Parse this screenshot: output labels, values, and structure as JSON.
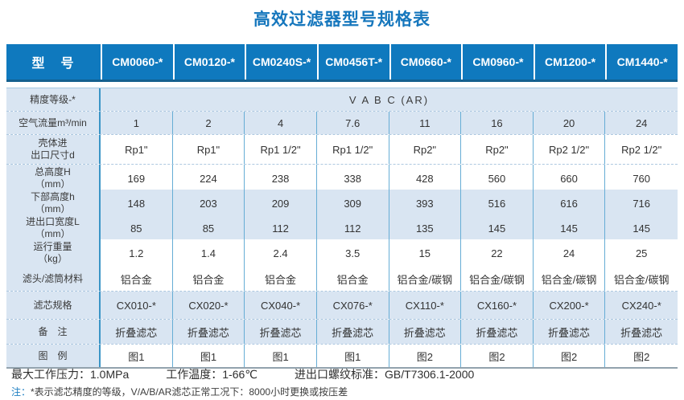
{
  "title": "高效过滤器型号规格表",
  "table": {
    "header": {
      "label": "型　号",
      "models": [
        "CM0060-*",
        "CM0120-*",
        "CM0240S-*",
        "CM0456T-*",
        "CM0660-*",
        "CM0960-*",
        "CM1200-*",
        "CM1440-*"
      ]
    },
    "accuracy": {
      "label": "精度等级-*",
      "value": "V A B C (AR)"
    },
    "rows": [
      {
        "label": "空气流量m³/min",
        "shaded": true,
        "values": [
          "1",
          "2",
          "4",
          "7.6",
          "11",
          "16",
          "20",
          "24"
        ]
      },
      {
        "label": "壳体进\n出口尺寸d",
        "shaded": false,
        "values": [
          "Rp1\"",
          "Rp1\"",
          "Rp1 1/2\"",
          "Rp1 1/2\"",
          "Rp2\"",
          "Rp2\"",
          "Rp2 1/2\"",
          "Rp2 1/2\""
        ]
      },
      {
        "label": "总高度H\n（mm）",
        "shaded": false,
        "values": [
          "169",
          "224",
          "238",
          "338",
          "428",
          "560",
          "660",
          "760"
        ]
      },
      {
        "label": "下部高度h\n（mm）",
        "shaded": true,
        "values": [
          "148",
          "203",
          "209",
          "309",
          "393",
          "516",
          "616",
          "716"
        ]
      },
      {
        "label": "进出口宽度L\n（mm）",
        "shaded": true,
        "values": [
          "85",
          "85",
          "112",
          "112",
          "135",
          "145",
          "145",
          "145"
        ]
      },
      {
        "label": "运行重量\n（kg）",
        "shaded": false,
        "values": [
          "1.2",
          "1.4",
          "2.4",
          "3.5",
          "15",
          "22",
          "24",
          "25"
        ]
      },
      {
        "label": "滤头/滤筒材料",
        "shaded": false,
        "values": [
          "铝合金",
          "铝合金",
          "铝合金",
          "铝合金",
          "铝合金/碳钢",
          "铝合金/碳钢",
          "铝合金/碳钢",
          "铝合金/碳钢"
        ]
      },
      {
        "label": "滤芯规格",
        "shaded": true,
        "values": [
          "CX010-*",
          "CX020-*",
          "CX040-*",
          "CX076-*",
          "CX110-*",
          "CX160-*",
          "CX200-*",
          "CX240-*"
        ]
      },
      {
        "label": "备　注",
        "shaded": true,
        "values": [
          "折叠滤芯",
          "折叠滤芯",
          "折叠滤芯",
          "折叠滤芯",
          "折叠滤芯",
          "折叠滤芯",
          "折叠滤芯",
          "折叠滤芯"
        ]
      },
      {
        "label": "图　例",
        "shaded": false,
        "values": [
          "图1",
          "图1",
          "图1",
          "图1",
          "图2",
          "图2",
          "图2",
          "图2"
        ]
      }
    ]
  },
  "footer": {
    "specs": [
      "最大工作压力：1.0MPa",
      "工作温度：1-66℃",
      "进出口螺纹标准：GB/T7306.1-2000"
    ],
    "note_prefix": "注：",
    "note": "*表示滤芯精度的等级，V/A/B/AR滤芯正常工况下：8000小时更换或按压差"
  },
  "colors": {
    "header_blue": "#0f79be",
    "header_edge": "#14608f",
    "row_shade": "#d9e5f2",
    "grid_line": "#66add5",
    "title_blue": "#1677bd",
    "note_blue": "#1e7fc2"
  }
}
